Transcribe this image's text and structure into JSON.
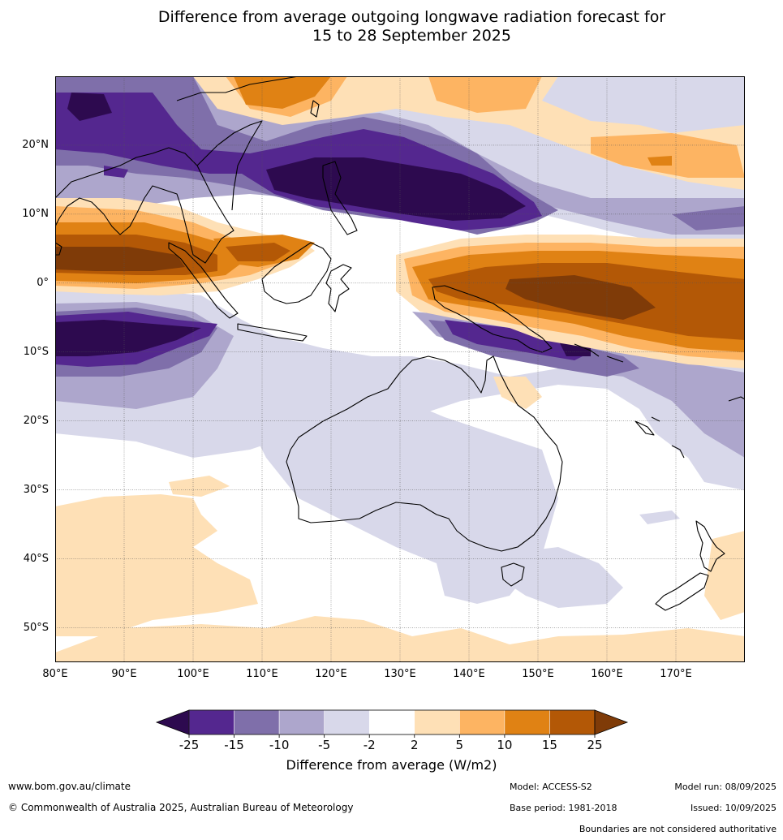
{
  "title_line1": "Difference from average outgoing longwave radiation forecast for",
  "title_line2": "15 to 28 September 2025",
  "map": {
    "lon_range": [
      80,
      180
    ],
    "lat_range": [
      -55,
      30
    ],
    "lat_ticks": [
      {
        "value": 20,
        "label": "20°N"
      },
      {
        "value": 10,
        "label": "10°N"
      },
      {
        "value": 0,
        "label": "0°"
      },
      {
        "value": -10,
        "label": "10°S"
      },
      {
        "value": -20,
        "label": "20°S"
      },
      {
        "value": -30,
        "label": "30°S"
      },
      {
        "value": -40,
        "label": "40°S"
      },
      {
        "value": -50,
        "label": "50°S"
      }
    ],
    "lon_ticks": [
      {
        "value": 80,
        "label": "80°E"
      },
      {
        "value": 90,
        "label": "90°E"
      },
      {
        "value": 100,
        "label": "100°E"
      },
      {
        "value": 110,
        "label": "110°E"
      },
      {
        "value": 120,
        "label": "120°E"
      },
      {
        "value": 130,
        "label": "130°E"
      },
      {
        "value": 140,
        "label": "140°E"
      },
      {
        "value": 150,
        "label": "150°E"
      },
      {
        "value": 160,
        "label": "160°E"
      },
      {
        "value": 170,
        "label": "170°E"
      }
    ],
    "grid": true
  },
  "colorbar": {
    "ticks": [
      "-25",
      "-15",
      "-10",
      "-5",
      "-2",
      "2",
      "5",
      "10",
      "15",
      "25"
    ],
    "colors": [
      "#2d0a4f",
      "#54278f",
      "#7f6faa",
      "#ada6cc",
      "#d8d8ea",
      "#ffffff",
      "#fee0b6",
      "#fdb462",
      "#e08214",
      "#b35806",
      "#7f3b08"
    ],
    "label": "Difference from average (W/m2)"
  },
  "footer": {
    "website": "www.bom.gov.au/climate",
    "copyright": "© Commonwealth of Australia 2025, Australian Bureau of Meteorology",
    "model": "Model: ACCESS-S2",
    "base_period": "Base period: 1981-2018",
    "model_run": "Model run: 08/09/2025",
    "issued": "Issued: 10/09/2025",
    "boundaries_note": "Boundaries are not considered authoritative"
  }
}
